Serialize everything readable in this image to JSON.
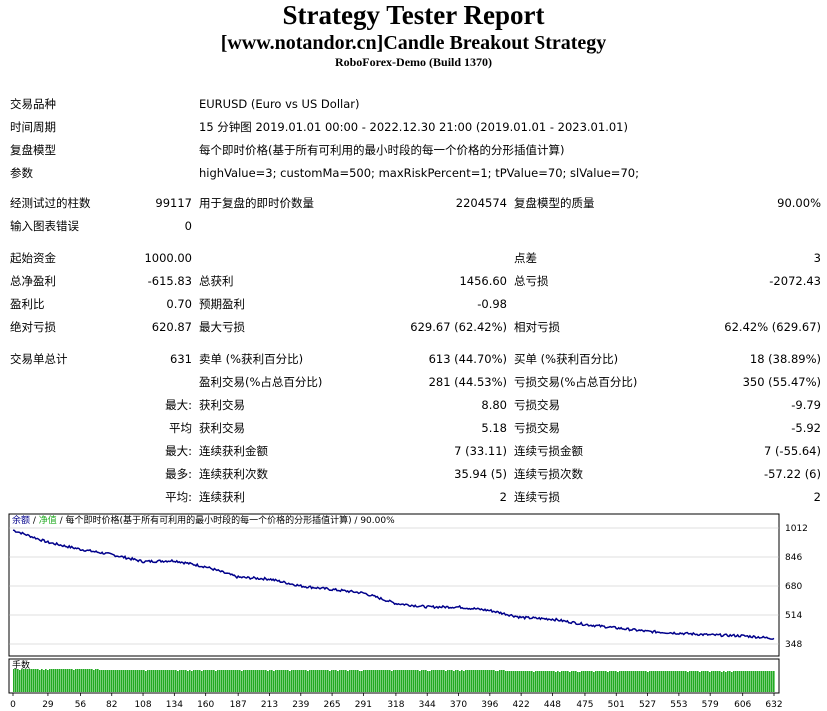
{
  "header": {
    "title": "Strategy Tester Report",
    "subtitle": "[www.notandor.cn]Candle Breakout Strategy",
    "server": "RoboForex-Demo (Build 1370)"
  },
  "settings": {
    "symbol_label": "交易品种",
    "symbol_value": "EURUSD (Euro vs US Dollar)",
    "period_label": "时间周期",
    "period_value": "15 分钟图 2019.01.01 00:00 - 2022.12.30 21:00 (2019.01.01 - 2023.01.01)",
    "model_label": "复盘模型",
    "model_value": "每个即时价格(基于所有可利用的最小时段的每一个价格的分形插值计算)",
    "params_label": "参数",
    "params_value": "highValue=3; customMa=500; maxRiskPercent=1; tPValue=70; slValue=70;"
  },
  "quality": {
    "bars_label": "经测试过的柱数",
    "bars_value": "99117",
    "ticks_label": "用于复盘的即时价数量",
    "ticks_value": "2204574",
    "quality_label": "复盘模型的质量",
    "quality_value": "90.00%",
    "errors_label": "输入图表错误",
    "errors_value": "0"
  },
  "results": {
    "initial_deposit_label": "起始资金",
    "initial_deposit": "1000.00",
    "spread_label": "点差",
    "spread": "3",
    "net_profit_label": "总净盈利",
    "net_profit": "-615.83",
    "gross_profit_label": "总获利",
    "gross_profit": "1456.60",
    "gross_loss_label": "总亏损",
    "gross_loss": "-2072.43",
    "profit_factor_label": "盈利比",
    "profit_factor": "0.70",
    "expected_payoff_label": "预期盈利",
    "expected_payoff": "-0.98",
    "abs_drawdown_label": "绝对亏损",
    "abs_drawdown": "620.87",
    "max_drawdown_label": "最大亏损",
    "max_drawdown": "629.67 (62.42%)",
    "rel_drawdown_label": "相对亏损",
    "rel_drawdown": "62.42% (629.67)"
  },
  "trades": {
    "total_label": "交易单总计",
    "total": "631",
    "short_label": "卖单 (%获利百分比)",
    "short": "613 (44.70%)",
    "long_label": "买单 (%获利百分比)",
    "long": "18 (38.89%)",
    "profit_trades_label": "盈利交易(%占总百分比)",
    "profit_trades": "281 (44.53%)",
    "loss_trades_label": "亏损交易(%占总百分比)",
    "loss_trades": "350 (55.47%)",
    "largest_label": "最大:",
    "largest_profit_label": "获利交易",
    "largest_profit": "8.80",
    "largest_loss_label": "亏损交易",
    "largest_loss": "-9.79",
    "average_label": "平均",
    "average_profit_label": "获利交易",
    "average_profit": "5.18",
    "average_loss_label": "亏损交易",
    "average_loss": "-5.92",
    "max_label": "最大:",
    "max_consec_wins_label": "连续获利金额",
    "max_consec_wins": "7 (33.11)",
    "max_consec_losses_label": "连续亏损金额",
    "max_consec_losses": "7 (-55.64)",
    "maximal_label": "最多:",
    "maximal_consec_profit_label": "连续获利次数",
    "maximal_consec_profit": "35.94 (5)",
    "maximal_consec_loss_label": "连续亏损次数",
    "maximal_consec_loss": "-57.22 (6)",
    "avg_label": "平均:",
    "avg_consec_wins_label": "连续获利",
    "avg_consec_wins": "2",
    "avg_consec_losses_label": "连续亏损",
    "avg_consec_losses": "2"
  },
  "chart_data": {
    "type": "line",
    "legend_balance": "余额",
    "legend_equity": "净值",
    "legend_rest": " / 每个即时价格(基于所有可利用的最小时段的每一个价格的分形插值计算) / 90.00%",
    "volume_label": "手数",
    "ylim": [
      348,
      1012
    ],
    "y_ticks": [
      "1012",
      "846",
      "680",
      "514",
      "348"
    ],
    "x_ticks": [
      "0",
      "29",
      "56",
      "82",
      "108",
      "134",
      "160",
      "187",
      "213",
      "239",
      "265",
      "291",
      "318",
      "344",
      "370",
      "396",
      "422",
      "448",
      "475",
      "501",
      "527",
      "553",
      "579",
      "606",
      "632"
    ],
    "series": [
      {
        "color": "#00008b",
        "x": [
          0,
          29,
          56,
          82,
          108,
          134,
          160,
          187,
          213,
          239,
          265,
          291,
          318,
          344,
          370,
          396,
          422,
          448,
          475,
          501,
          527,
          553,
          579,
          606,
          632
        ],
        "y": [
          1000,
          930,
          890,
          860,
          820,
          825,
          790,
          730,
          720,
          680,
          660,
          640,
          580,
          560,
          560,
          540,
          500,
          490,
          460,
          440,
          420,
          410,
          400,
          395,
          380
        ]
      }
    ],
    "volume_value": 0.01
  },
  "colors": {
    "balance": "#00008b",
    "volume": "#22aa22",
    "grid": "#c0c0c0",
    "axis": "#000000"
  }
}
